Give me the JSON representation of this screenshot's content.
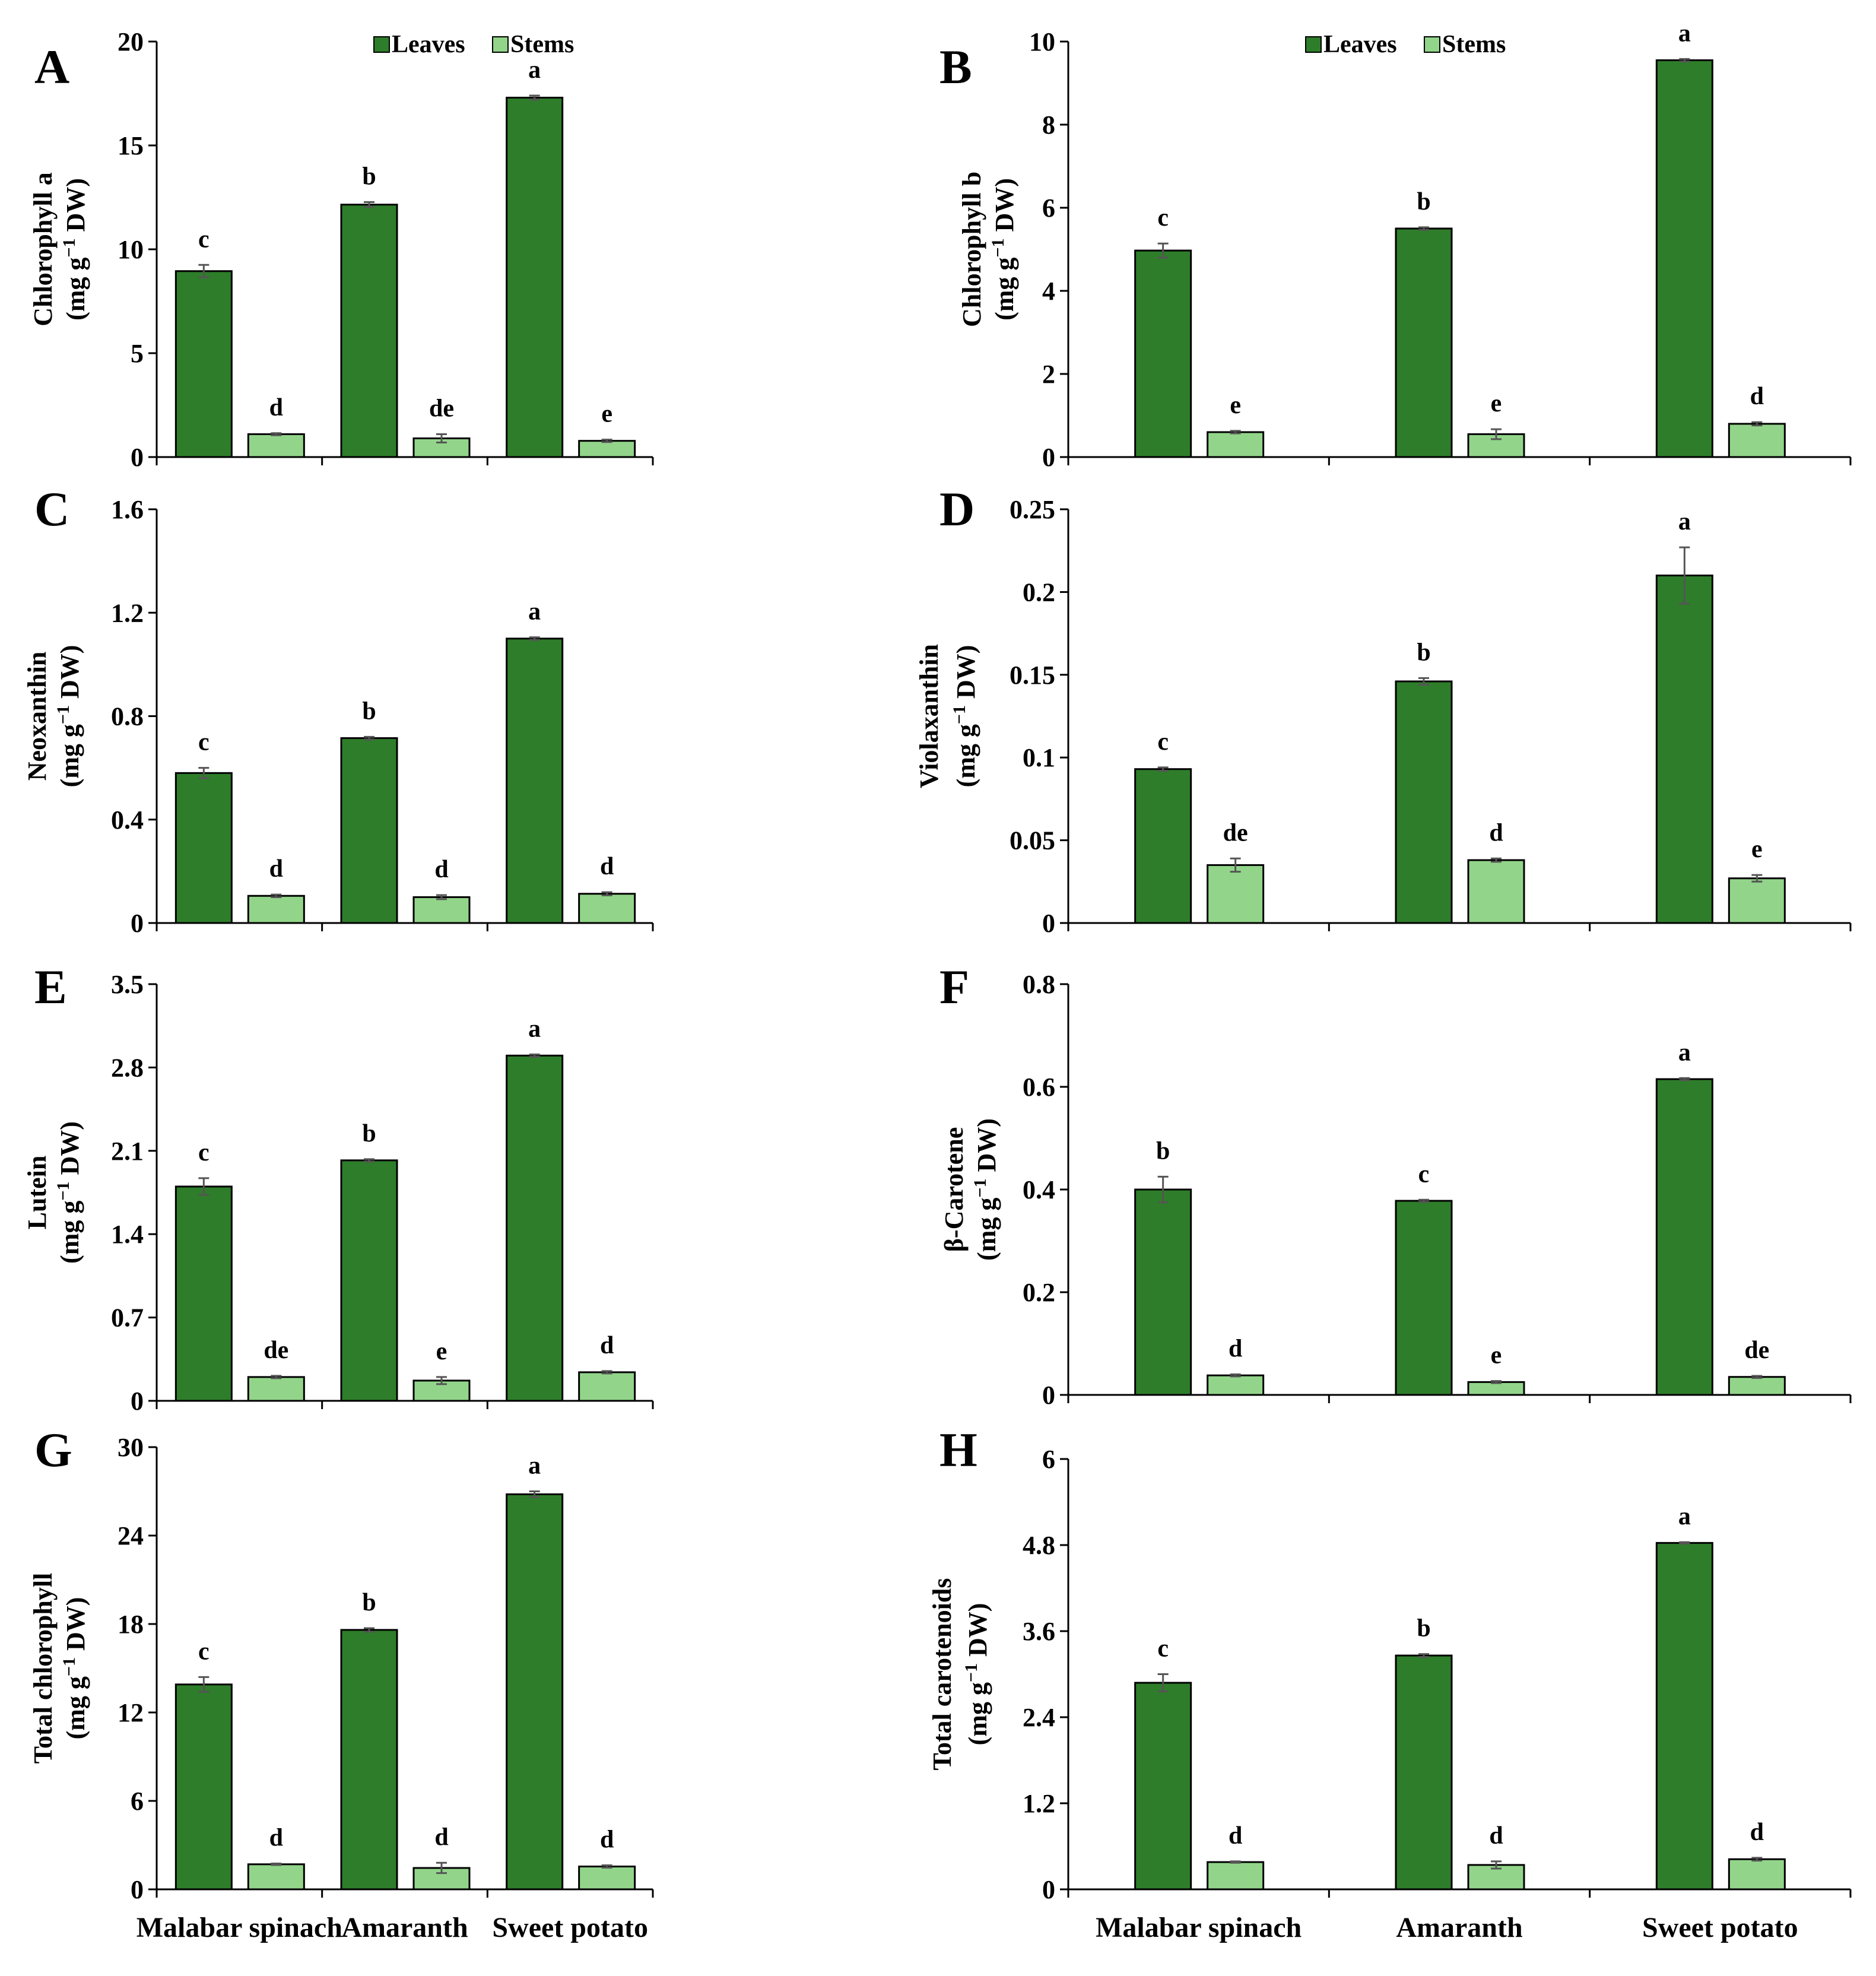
{
  "figure": {
    "categories": [
      "Malabar spinach",
      "Amaranth",
      "Sweet potato"
    ],
    "legend": [
      {
        "name": "Leaves",
        "color": "#2e7d2a"
      },
      {
        "name": "Stems",
        "color": "#92d58a"
      }
    ]
  },
  "chart_data": [
    {
      "type": "bar",
      "panel": "A",
      "ylabel_line1": "Chlorophyll a",
      "ylabel_line2": "(mg g",
      "ylabel_sup": "−1",
      "ylabel_end": " DW)",
      "ylim": [
        0,
        20
      ],
      "yticks": [
        "0",
        "5",
        "10",
        "15",
        "20"
      ],
      "ytick_values": [
        0,
        5,
        10,
        15,
        20
      ],
      "categories": [
        "Malabar spinach",
        "Amaranth",
        "Sweet potato"
      ],
      "series": [
        {
          "name": "Leaves",
          "values": [
            8.95,
            12.15,
            17.3
          ],
          "errors": [
            0.3,
            0.12,
            0.1
          ],
          "letters": [
            "c",
            "b",
            "a"
          ]
        },
        {
          "name": "Stems",
          "values": [
            1.1,
            0.9,
            0.78
          ],
          "errors": [
            0.05,
            0.2,
            0.06
          ],
          "letters": [
            "d",
            "de",
            "e"
          ]
        }
      ],
      "legend_shown": true
    },
    {
      "type": "bar",
      "panel": "B",
      "ylabel_line1": "Chlorophyll b",
      "ylabel_line2": "(mg g",
      "ylabel_sup": "−1",
      "ylabel_end": " DW)",
      "ylim": [
        0,
        10
      ],
      "yticks": [
        "0",
        "2",
        "4",
        "6",
        "8",
        "10"
      ],
      "ytick_values": [
        0,
        2,
        4,
        6,
        8,
        10
      ],
      "categories": [
        "Malabar spinach",
        "Amaranth",
        "Sweet potato"
      ],
      "series": [
        {
          "name": "Leaves",
          "values": [
            4.97,
            5.5,
            9.55
          ],
          "errors": [
            0.17,
            0.03,
            0.03
          ],
          "letters": [
            "c",
            "b",
            "a"
          ]
        },
        {
          "name": "Stems",
          "values": [
            0.6,
            0.55,
            0.8
          ],
          "errors": [
            0.03,
            0.12,
            0.04
          ],
          "letters": [
            "e",
            "e",
            "d"
          ]
        }
      ],
      "legend_shown": true
    },
    {
      "type": "bar",
      "panel": "C",
      "ylabel_line1": "Neoxanthin",
      "ylabel_line2": "(mg g",
      "ylabel_sup": "−1",
      "ylabel_end": " DW)",
      "ylim": [
        0,
        1.6
      ],
      "yticks": [
        "0",
        "0.4",
        "0.8",
        "1.2",
        "1.6"
      ],
      "ytick_values": [
        0,
        0.4,
        0.8,
        1.2,
        1.6
      ],
      "categories": [
        "Malabar spinach",
        "Amaranth",
        "Sweet potato"
      ],
      "series": [
        {
          "name": "Leaves",
          "values": [
            0.58,
            0.715,
            1.1
          ],
          "errors": [
            0.02,
            0.005,
            0.005
          ],
          "letters": [
            "c",
            "b",
            "a"
          ]
        },
        {
          "name": "Stems",
          "values": [
            0.105,
            0.1,
            0.113
          ],
          "errors": [
            0.005,
            0.008,
            0.006
          ],
          "letters": [
            "d",
            "d",
            "d"
          ]
        }
      ],
      "legend_shown": false
    },
    {
      "type": "bar",
      "panel": "D",
      "ylabel_line1": "Violaxanthin",
      "ylabel_line2": "(mg g",
      "ylabel_sup": "−1",
      "ylabel_end": " DW)",
      "ylim": [
        0,
        0.25
      ],
      "yticks": [
        "0",
        "0.05",
        "0.1",
        "0.15",
        "0.2",
        "0.25"
      ],
      "ytick_values": [
        0,
        0.05,
        0.1,
        0.15,
        0.2,
        0.25
      ],
      "categories": [
        "Malabar spinach",
        "Amaranth",
        "Sweet potato"
      ],
      "series": [
        {
          "name": "Leaves",
          "values": [
            0.093,
            0.146,
            0.21
          ],
          "errors": [
            0.001,
            0.002,
            0.017
          ],
          "letters": [
            "c",
            "b",
            "a"
          ]
        },
        {
          "name": "Stems",
          "values": [
            0.035,
            0.038,
            0.027
          ],
          "errors": [
            0.004,
            0.001,
            0.002
          ],
          "letters": [
            "de",
            "d",
            "e"
          ]
        }
      ],
      "legend_shown": false
    },
    {
      "type": "bar",
      "panel": "E",
      "ylabel_line1": "Lutein",
      "ylabel_line2": "(mg g",
      "ylabel_sup": "−1",
      "ylabel_end": " DW)",
      "ylim": [
        0,
        3.5
      ],
      "yticks": [
        "0",
        "0.7",
        "1.4",
        "2.1",
        "2.8",
        "3.5"
      ],
      "ytick_values": [
        0,
        0.7,
        1.4,
        2.1,
        2.8,
        3.5
      ],
      "categories": [
        "Malabar spinach",
        "Amaranth",
        "Sweet potato"
      ],
      "series": [
        {
          "name": "Leaves",
          "values": [
            1.8,
            2.02,
            2.9
          ],
          "errors": [
            0.07,
            0.01,
            0.01
          ],
          "letters": [
            "c",
            "b",
            "a"
          ]
        },
        {
          "name": "Stems",
          "values": [
            0.2,
            0.17,
            0.24
          ],
          "errors": [
            0.01,
            0.03,
            0.01
          ],
          "letters": [
            "de",
            "e",
            "d"
          ]
        }
      ],
      "legend_shown": false
    },
    {
      "type": "bar",
      "panel": "F",
      "ylabel_line1": "β-Carotene",
      "ylabel_line2": "(mg g",
      "ylabel_sup": "−1",
      "ylabel_end": " DW)",
      "ylim": [
        0,
        0.8
      ],
      "yticks": [
        "0",
        "0.2",
        "0.4",
        "0.6",
        "0.8"
      ],
      "ytick_values": [
        0,
        0.2,
        0.4,
        0.6,
        0.8
      ],
      "categories": [
        "Malabar spinach",
        "Amaranth",
        "Sweet potato"
      ],
      "series": [
        {
          "name": "Leaves",
          "values": [
            0.4,
            0.378,
            0.615
          ],
          "errors": [
            0.025,
            0.002,
            0.002
          ],
          "letters": [
            "b",
            "c",
            "a"
          ]
        },
        {
          "name": "Stems",
          "values": [
            0.038,
            0.025,
            0.035
          ],
          "errors": [
            0.002,
            0.002,
            0.002
          ],
          "letters": [
            "d",
            "e",
            "de"
          ]
        }
      ],
      "legend_shown": false
    },
    {
      "type": "bar",
      "panel": "G",
      "ylabel_line1": "Total chlorophyll",
      "ylabel_line2": "(mg g",
      "ylabel_sup": "−1",
      "ylabel_end": " DW)",
      "ylim": [
        0,
        30
      ],
      "yticks": [
        "0",
        "6",
        "12",
        "18",
        "24",
        "30"
      ],
      "ytick_values": [
        0,
        6,
        12,
        18,
        24,
        30
      ],
      "categories": [
        "Malabar spinach",
        "Amaranth",
        "Sweet potato"
      ],
      "series": [
        {
          "name": "Leaves",
          "values": [
            13.9,
            17.6,
            26.8
          ],
          "errors": [
            0.5,
            0.12,
            0.2
          ],
          "letters": [
            "c",
            "b",
            "a"
          ]
        },
        {
          "name": "Stems",
          "values": [
            1.7,
            1.45,
            1.55
          ],
          "errors": [
            0.05,
            0.35,
            0.08
          ],
          "letters": [
            "d",
            "d",
            "d"
          ]
        }
      ],
      "legend_shown": false
    },
    {
      "type": "bar",
      "panel": "H",
      "ylabel_line1": "Total carotenoids",
      "ylabel_line2": "(mg g",
      "ylabel_sup": "−1",
      "ylabel_end": " DW)",
      "ylim": [
        0,
        6
      ],
      "yticks": [
        "0",
        "1.2",
        "2.4",
        "3.6",
        "4.8",
        "6"
      ],
      "ytick_values": [
        0,
        1.2,
        2.4,
        3.6,
        4.8,
        6
      ],
      "categories": [
        "Malabar spinach",
        "Amaranth",
        "Sweet potato"
      ],
      "series": [
        {
          "name": "Leaves",
          "values": [
            2.88,
            3.26,
            4.83
          ],
          "errors": [
            0.12,
            0.02,
            0.01
          ],
          "letters": [
            "c",
            "b",
            "a"
          ]
        },
        {
          "name": "Stems",
          "values": [
            0.38,
            0.34,
            0.42
          ],
          "errors": [
            0.01,
            0.05,
            0.02
          ],
          "letters": [
            "d",
            "d",
            "d"
          ]
        }
      ],
      "legend_shown": false
    }
  ]
}
